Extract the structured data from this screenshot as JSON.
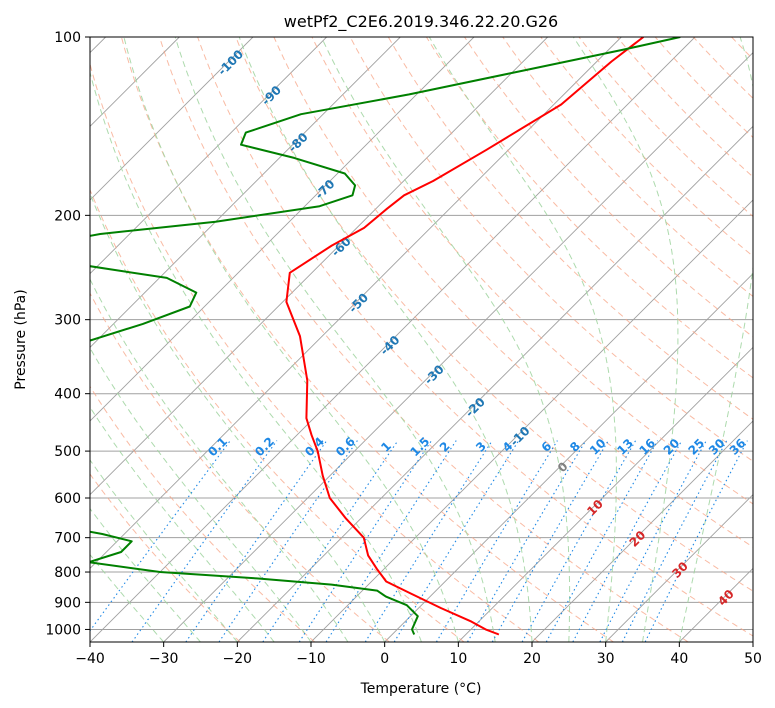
{
  "chart_data": {
    "type": "line",
    "title": "wetPf2_C2E6.2019.346.22.20.G26",
    "xlabel": "Temperature (°C)",
    "ylabel": "Pressure (hPa)",
    "xlim": [
      -40,
      50
    ],
    "ylim": [
      1050,
      100
    ],
    "y_scale": "log",
    "skew": "skew-T",
    "grid": true,
    "x_ticks": [
      -40,
      -30,
      -20,
      -10,
      0,
      10,
      20,
      30,
      40,
      50
    ],
    "y_ticks": [
      100,
      200,
      300,
      400,
      500,
      600,
      700,
      800,
      900,
      1000
    ],
    "series": [
      {
        "color": "#ff0000",
        "points": [
          [
            100,
            -47
          ],
          [
            110,
            -48
          ],
          [
            130,
            -49
          ],
          [
            155,
            -53
          ],
          [
            175,
            -56
          ],
          [
            185,
            -58
          ],
          [
            195,
            -58.5
          ],
          [
            210,
            -59
          ],
          [
            225,
            -61
          ],
          [
            250,
            -63
          ],
          [
            280,
            -59.5
          ],
          [
            320,
            -53
          ],
          [
            380,
            -46
          ],
          [
            440,
            -41
          ],
          [
            470,
            -38
          ],
          [
            500,
            -35
          ],
          [
            550,
            -31
          ],
          [
            600,
            -27
          ],
          [
            650,
            -22
          ],
          [
            700,
            -17
          ],
          [
            750,
            -14
          ],
          [
            790,
            -11
          ],
          [
            830,
            -8
          ],
          [
            870,
            -3
          ],
          [
            920,
            3
          ],
          [
            970,
            9
          ],
          [
            1000,
            12
          ],
          [
            1020,
            14.5
          ]
        ]
      },
      {
        "color": "#008000",
        "points": [
          [
            100,
            -42
          ],
          [
            105,
            -48
          ],
          [
            115,
            -60
          ],
          [
            125,
            -71
          ],
          [
            135,
            -83
          ],
          [
            145,
            -88
          ],
          [
            152,
            -87
          ],
          [
            160,
            -78
          ],
          [
            170,
            -69
          ],
          [
            178,
            -66
          ],
          [
            185,
            -65
          ],
          [
            193,
            -68
          ],
          [
            205,
            -80
          ],
          [
            215,
            -94
          ],
          [
            225,
            -101
          ],
          [
            240,
            -95
          ],
          [
            255,
            -79
          ],
          [
            270,
            -73
          ],
          [
            285,
            -72
          ],
          [
            305,
            -76
          ],
          [
            330,
            -82
          ],
          [
            345,
            -87
          ],
          [
            360,
            -95
          ],
          [
            370,
            -104
          ],
          [
            385,
            -120
          ],
          [
            430,
            -111
          ],
          [
            450,
            -80
          ],
          [
            465,
            -74
          ],
          [
            480,
            -75
          ],
          [
            500,
            -78
          ],
          [
            520,
            -84
          ],
          [
            545,
            -100
          ],
          [
            570,
            -120
          ],
          [
            600,
            -105
          ],
          [
            620,
            -86
          ],
          [
            660,
            -63
          ],
          [
            690,
            -53
          ],
          [
            710,
            -48
          ],
          [
            740,
            -48
          ],
          [
            770,
            -51
          ],
          [
            800,
            -40
          ],
          [
            820,
            -26
          ],
          [
            840,
            -15
          ],
          [
            860,
            -8
          ],
          [
            880,
            -6
          ],
          [
            910,
            -2
          ],
          [
            950,
            1
          ],
          [
            1000,
            2
          ],
          [
            1020,
            3
          ]
        ]
      }
    ],
    "moist_adiabat_labels": [
      "0.1",
      "0.2",
      "0.4",
      "0.6",
      "1",
      "1.5",
      "2",
      "3",
      "4",
      "6",
      "8",
      "10",
      "13",
      "16",
      "20",
      "25",
      "30",
      "36"
    ],
    "isotherm_labels_blue": [
      "-100",
      "-90",
      "-80",
      "-70",
      "-60",
      "-50",
      "-40",
      "-30",
      "-20",
      "-10",
      "0"
    ],
    "isotherm_labels_red": [
      "10",
      "20",
      "30",
      "40"
    ],
    "colors": {
      "temperature": "#ff0000",
      "dewpoint": "#008000",
      "isotherm": "#a0a0a0",
      "dry_adiabat": "#f7a485",
      "moist_adiabat": "#9fd39f",
      "mixing_ratio": "#1e88e5",
      "label_blue": "#1f77b4",
      "label_red": "#d62728"
    }
  }
}
